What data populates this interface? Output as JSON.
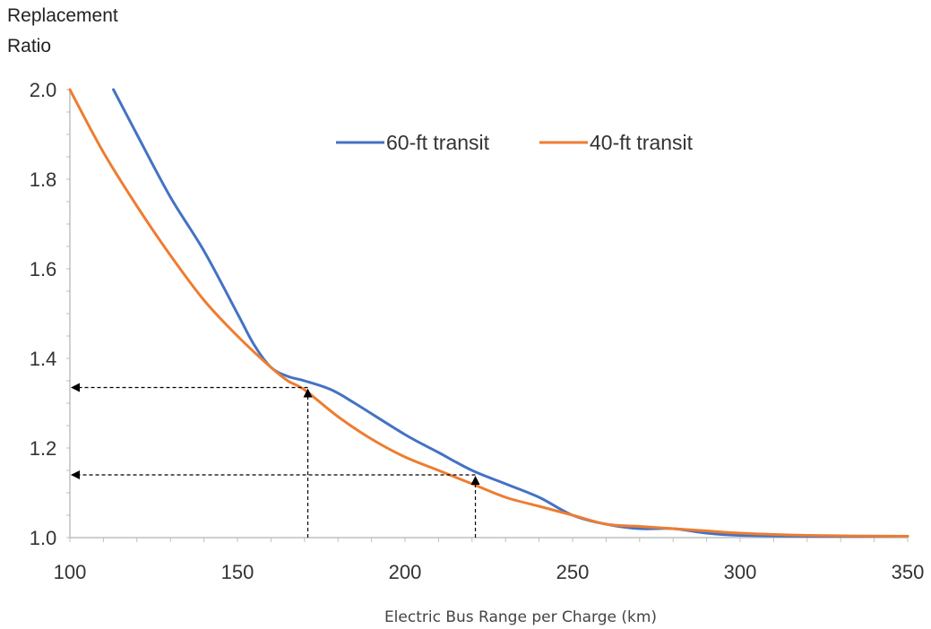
{
  "chart_data": {
    "type": "line",
    "title": "",
    "ylabel_lines": [
      "Replacement",
      "Ratio"
    ],
    "xlabel": "Electric Bus Range per Charge (km)",
    "xlim": [
      100,
      350
    ],
    "ylim": [
      1.0,
      2.0
    ],
    "x_ticks": [
      100,
      150,
      200,
      250,
      300,
      350
    ],
    "y_ticks": [
      1.0,
      1.2,
      1.4,
      1.6,
      1.8,
      2.0
    ],
    "y_tick_labels": [
      "1.0",
      "1.2",
      "1.4",
      "1.6",
      "1.8",
      "2.0"
    ],
    "legend_position": "top-center",
    "series": [
      {
        "name": "60-ft transit",
        "color": "#4472C4",
        "x": [
          113,
          120,
          130,
          140,
          150,
          155,
          160,
          165,
          170,
          178,
          185,
          200,
          210,
          220,
          230,
          240,
          250,
          260,
          270,
          280,
          290,
          300,
          320,
          350
        ],
        "y": [
          2.0,
          1.9,
          1.76,
          1.64,
          1.5,
          1.43,
          1.38,
          1.36,
          1.35,
          1.33,
          1.3,
          1.23,
          1.19,
          1.15,
          1.12,
          1.09,
          1.05,
          1.03,
          1.02,
          1.02,
          1.01,
          1.005,
          1.003,
          1.003
        ]
      },
      {
        "name": "40-ft transit",
        "color": "#ED7D31",
        "x": [
          100,
          110,
          120,
          130,
          140,
          150,
          160,
          165,
          170,
          180,
          190,
          200,
          210,
          220,
          230,
          240,
          250,
          260,
          270,
          280,
          290,
          300,
          320,
          350
        ],
        "y": [
          2.0,
          1.86,
          1.74,
          1.63,
          1.53,
          1.45,
          1.38,
          1.35,
          1.33,
          1.27,
          1.22,
          1.18,
          1.15,
          1.12,
          1.09,
          1.07,
          1.05,
          1.03,
          1.025,
          1.02,
          1.015,
          1.01,
          1.005,
          1.003
        ]
      }
    ],
    "annotations": [
      {
        "type": "dashed-guide",
        "x": 171,
        "y": 1.335
      },
      {
        "type": "dashed-guide",
        "x": 221,
        "y": 1.14
      }
    ]
  }
}
